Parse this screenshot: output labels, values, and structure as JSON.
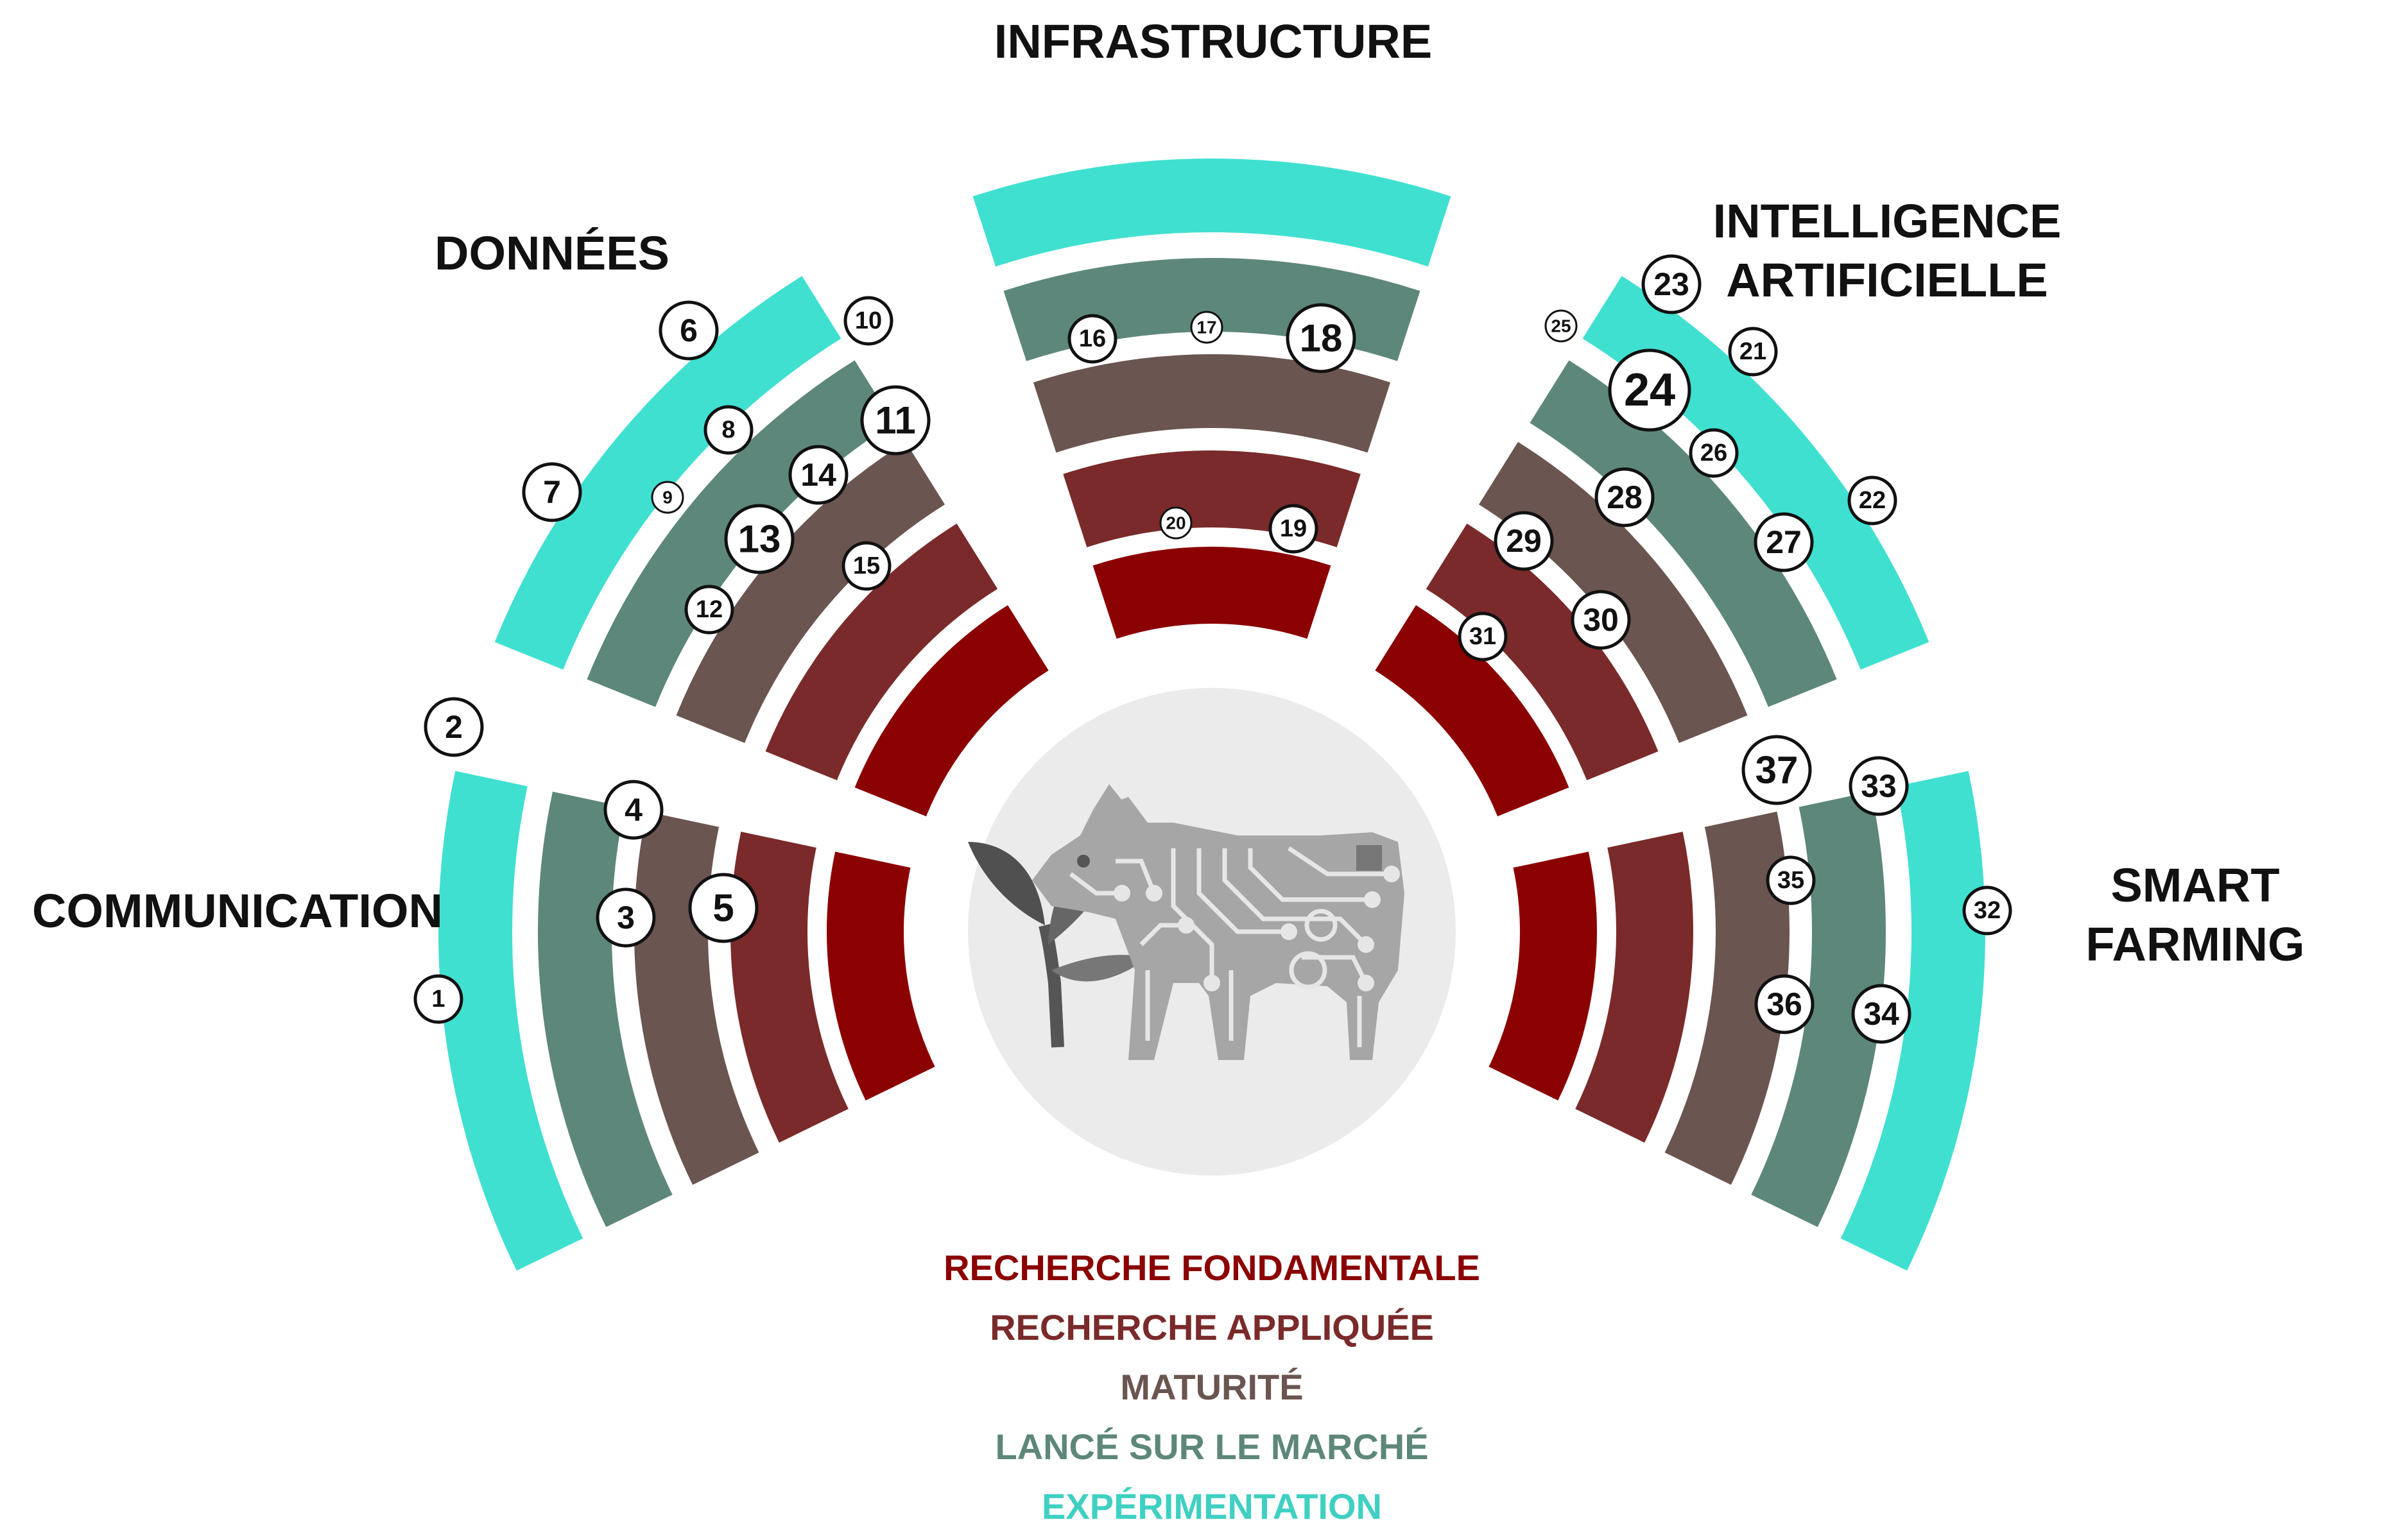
{
  "sectors": [
    {
      "id": "communication",
      "title_lines": [
        "COMMUNICATION"
      ]
    },
    {
      "id": "donnees",
      "title_lines": [
        "DONNÉES"
      ]
    },
    {
      "id": "infrastructure",
      "title_lines": [
        "INFRASTRUCTURE"
      ]
    },
    {
      "id": "intelligence",
      "title_lines": [
        "INTELLIGENCE",
        "ARTIFICIELLE"
      ]
    },
    {
      "id": "smart-farming",
      "title_lines": [
        "SMART",
        "FARMING"
      ]
    }
  ],
  "rings": [
    {
      "name": "RECHERCHE FONDAMENTALE",
      "color": "#8b0000"
    },
    {
      "name": "RECHERCHE APPLIQUÉE",
      "color": "#7a2a2a"
    },
    {
      "name": "MATURITÉ",
      "color": "#6b5550"
    },
    {
      "name": "LANCÉ SUR LE MARCHÉ",
      "color": "#5d877a"
    },
    {
      "name": "EXPÉRIMENTATION",
      "color": "#40e0d0"
    }
  ],
  "markers": [
    {
      "label": "1",
      "sector": "communication",
      "ring": 4,
      "size": "small"
    },
    {
      "label": "2",
      "sector": "communication",
      "ring": 4,
      "size": "medium"
    },
    {
      "label": "3",
      "sector": "communication",
      "ring": 2,
      "size": "medium"
    },
    {
      "label": "4",
      "sector": "communication",
      "ring": 2,
      "size": "medium"
    },
    {
      "label": "5",
      "sector": "communication",
      "ring": 1,
      "size": "large"
    },
    {
      "label": "6",
      "sector": "donnees",
      "ring": 4,
      "size": "medium"
    },
    {
      "label": "7",
      "sector": "donnees",
      "ring": 4,
      "size": "medium"
    },
    {
      "label": "8",
      "sector": "donnees",
      "ring": 3,
      "size": "small"
    },
    {
      "label": "9",
      "sector": "donnees",
      "ring": 3,
      "size": "tiny"
    },
    {
      "label": "10",
      "sector": "donnees",
      "ring": 3,
      "size": "small"
    },
    {
      "label": "11",
      "sector": "donnees",
      "ring": 2,
      "size": "large"
    },
    {
      "label": "12",
      "sector": "donnees",
      "ring": 2,
      "size": "small"
    },
    {
      "label": "13",
      "sector": "donnees",
      "ring": 2,
      "size": "large"
    },
    {
      "label": "14",
      "sector": "donnees",
      "ring": 2,
      "size": "medium"
    },
    {
      "label": "15",
      "sector": "donnees",
      "ring": 1,
      "size": "small"
    },
    {
      "label": "16",
      "sector": "infrastructure",
      "ring": 2,
      "size": "small"
    },
    {
      "label": "17",
      "sector": "infrastructure",
      "ring": 2,
      "size": "tiny"
    },
    {
      "label": "18",
      "sector": "infrastructure",
      "ring": 2,
      "size": "large"
    },
    {
      "label": "19",
      "sector": "infrastructure",
      "ring": 0,
      "size": "small"
    },
    {
      "label": "20",
      "sector": "infrastructure",
      "ring": 0,
      "size": "tiny"
    },
    {
      "label": "21",
      "sector": "intelligence",
      "ring": 4,
      "size": "small"
    },
    {
      "label": "22",
      "sector": "intelligence",
      "ring": 4,
      "size": "small"
    },
    {
      "label": "23",
      "sector": "intelligence",
      "ring": 4,
      "size": "medium"
    },
    {
      "label": "24",
      "sector": "intelligence",
      "ring": 3,
      "size": "xlarge"
    },
    {
      "label": "25",
      "sector": "intelligence",
      "ring": 3,
      "size": "tiny"
    },
    {
      "label": "26",
      "sector": "intelligence",
      "ring": 3,
      "size": "small"
    },
    {
      "label": "27",
      "sector": "intelligence",
      "ring": 3,
      "size": "medium"
    },
    {
      "label": "28",
      "sector": "intelligence",
      "ring": 2,
      "size": "medium"
    },
    {
      "label": "29",
      "sector": "intelligence",
      "ring": 1,
      "size": "medium"
    },
    {
      "label": "30",
      "sector": "intelligence",
      "ring": 1,
      "size": "medium"
    },
    {
      "label": "31",
      "sector": "intelligence",
      "ring": 0,
      "size": "small"
    },
    {
      "label": "32",
      "sector": "smart-farming",
      "ring": 4,
      "size": "small"
    },
    {
      "label": "33",
      "sector": "smart-farming",
      "ring": 3,
      "size": "medium"
    },
    {
      "label": "34",
      "sector": "smart-farming",
      "ring": 3,
      "size": "medium"
    },
    {
      "label": "35",
      "sector": "smart-farming",
      "ring": 2,
      "size": "small"
    },
    {
      "label": "36",
      "sector": "smart-farming",
      "ring": 2,
      "size": "medium"
    },
    {
      "label": "37",
      "sector": "smart-farming",
      "ring": 2,
      "size": "large"
    }
  ],
  "center": {
    "icon": "circuit-cow-with-sprout-icon",
    "fill_color": "#ebebeb"
  }
}
